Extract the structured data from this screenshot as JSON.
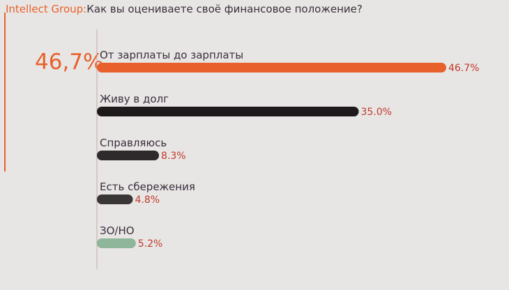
{
  "header": {
    "brand": "Intellect Group:",
    "question": "Как вы оцениваете своё финансовое положение?"
  },
  "highlight": {
    "value": "46,7%"
  },
  "colors": {
    "accent": "#e8602c",
    "value_text": "#c0392b",
    "axis": "#c4a8a8"
  },
  "chart_data": {
    "type": "bar",
    "orientation": "horizontal",
    "title": "Как вы оцениваете своё финансовое положение?",
    "categories": [
      "От зарплаты до зарплаты",
      "Живу в долг",
      "Справляюсь",
      "Есть сбережения",
      "ЗО/НО"
    ],
    "values": [
      46.7,
      35.0,
      8.3,
      4.8,
      5.2
    ],
    "value_labels": [
      "46.7%",
      "35.0%",
      "8.3%",
      "4.8%",
      "5.2%"
    ],
    "bar_colors": [
      "#e8602c",
      "#1e1a1c",
      "#2e2a2c",
      "#3a3536",
      "#8fb59b"
    ],
    "xlim": [
      0,
      46.7
    ],
    "grid": false,
    "legend": "none"
  }
}
